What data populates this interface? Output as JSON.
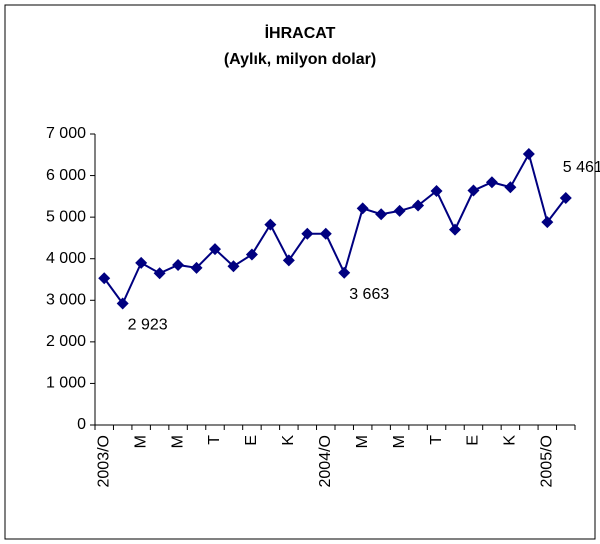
{
  "chart_data": {
    "type": "line",
    "title": "İHRACAT",
    "subtitle": "(Aylık, milyon dolar)",
    "categories": [
      "2003/O",
      null,
      "M",
      null,
      "M",
      null,
      "T",
      null,
      "E",
      null,
      "K",
      null,
      "2004/O",
      null,
      "M",
      null,
      "M",
      null,
      "T",
      null,
      "E",
      null,
      "K",
      null,
      "2005/O",
      null
    ],
    "series": [
      {
        "name": "İhracat",
        "color": "#000080",
        "values": [
          3530,
          2923,
          3900,
          3650,
          3850,
          3780,
          4230,
          3820,
          4100,
          4820,
          3960,
          4600,
          4600,
          3663,
          5210,
          5070,
          5150,
          5280,
          5630,
          4700,
          5640,
          5840,
          5720,
          6520,
          4880,
          5461
        ],
        "value_labels": [
          null,
          "2 923",
          null,
          null,
          null,
          null,
          null,
          null,
          null,
          null,
          null,
          null,
          null,
          "3 663",
          null,
          null,
          null,
          null,
          null,
          null,
          null,
          null,
          null,
          null,
          null,
          "5 461"
        ]
      }
    ],
    "ylim": [
      0,
      7000
    ],
    "yticks": [
      {
        "value": 0,
        "label": "0"
      },
      {
        "value": 1000,
        "label": "1 000"
      },
      {
        "value": 2000,
        "label": "2 000"
      },
      {
        "value": 3000,
        "label": "3 000"
      },
      {
        "value": 4000,
        "label": "4 000"
      },
      {
        "value": 5000,
        "label": "5 000"
      },
      {
        "value": 6000,
        "label": "6 000"
      },
      {
        "value": 7000,
        "label": "7 000"
      }
    ]
  }
}
